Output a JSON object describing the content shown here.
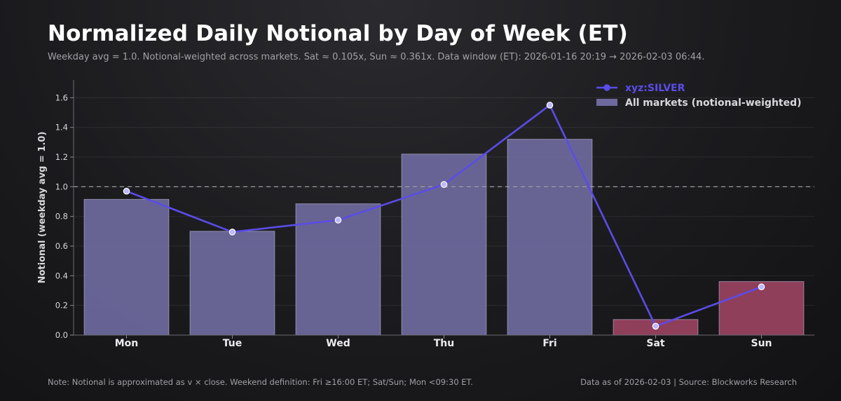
{
  "header": {
    "title": "Normalized Daily Notional by Day of Week (ET)",
    "subtitle": "Weekday avg = 1.0. Notional-weighted across markets. Sat ≈ 0.105x, Sun ≈ 0.361x. Data window (ET): 2026-01-16 20:19 → 2026-02-03 06:44."
  },
  "footer": {
    "note": "Note: Notional is approximated as v × close. Weekend definition: Fri ≥16:00 ET; Sat/Sun; Mon <09:30 ET.",
    "source": "Data as of 2026-02-03 | Source: Blockworks Research"
  },
  "colors": {
    "weekday_bar": "#6e6a9e",
    "weekend_bar": "#9a4360",
    "line": "#5b4ce8",
    "reference": "#9a9aa0"
  },
  "chart_data": {
    "type": "bar",
    "title": "Normalized Daily Notional by Day of Week (ET)",
    "xlabel": "",
    "ylabel": "Notional (weekday avg = 1.0)",
    "ylim": [
      0,
      1.72
    ],
    "yticks": [
      0.0,
      0.2,
      0.4,
      0.6,
      0.8,
      1.0,
      1.2,
      1.4,
      1.6
    ],
    "ytick_labels": [
      "0.0",
      "0.2",
      "0.4",
      "0.6",
      "0.8",
      "1.0",
      "1.2",
      "1.4",
      "1.6"
    ],
    "grid": true,
    "reference_line": 1.0,
    "legend_position": "top-right",
    "categories": [
      "Mon",
      "Tue",
      "Wed",
      "Thu",
      "Fri",
      "Sat",
      "Sun"
    ],
    "weekend_categories": [
      "Sat",
      "Sun"
    ],
    "series": [
      {
        "name": "All markets (notional-weighted)",
        "kind": "bar",
        "values": [
          0.915,
          0.7,
          0.885,
          1.22,
          1.32,
          0.105,
          0.361
        ]
      },
      {
        "name": "xyz:SILVER",
        "kind": "line",
        "values": [
          0.97,
          0.695,
          0.775,
          1.015,
          1.55,
          0.06,
          0.325
        ]
      }
    ]
  }
}
